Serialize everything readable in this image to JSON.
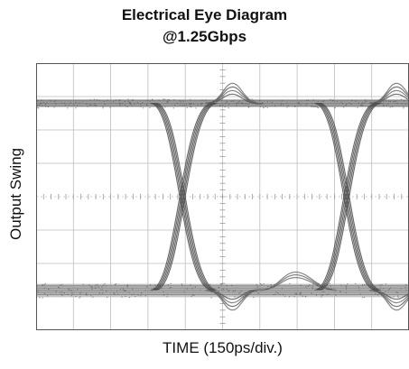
{
  "chart_data": {
    "type": "line",
    "title": "Electrical Eye Diagram",
    "subtitle": "@1.25Gbps",
    "xlabel": "TIME (150ps/div.)",
    "ylabel": "Output Swing",
    "x_divisions": 10,
    "y_divisions": 8,
    "x_unit": "ps",
    "x_per_division": 150,
    "grid": true,
    "colors": {
      "trace": "#6a6a6a",
      "trace_light": "#b0b0b0",
      "grid": "#bdbdbd",
      "frame": "#555555"
    },
    "series": [
      {
        "role": "upper-rail",
        "x": [
          0,
          150,
          450,
          600,
          750,
          800,
          900,
          1200,
          1500
        ],
        "y": [
          6.8,
          6.8,
          6.8,
          6.8,
          6.82,
          7.3,
          6.78,
          6.8,
          6.8
        ]
      },
      {
        "role": "lower-rail",
        "x": [
          0,
          150,
          600,
          750,
          800,
          900,
          1200,
          1500
        ],
        "y": [
          1.2,
          1.25,
          1.25,
          1.2,
          0.75,
          1.2,
          1.2,
          1.2
        ]
      }
    ],
    "crossings_x": [
      645,
      1305
    ],
    "levels": {
      "high": 6.8,
      "low": 1.2
    }
  }
}
